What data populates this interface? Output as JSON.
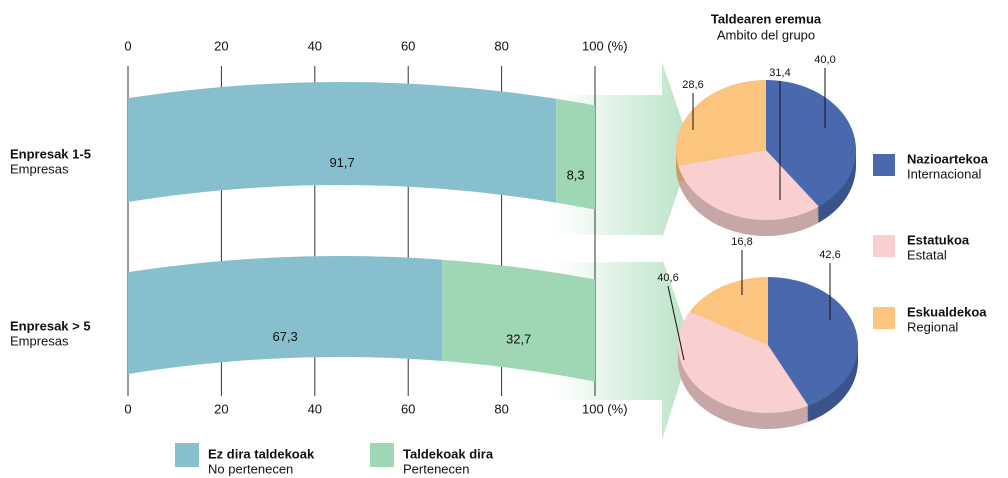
{
  "chart_data": [
    {
      "type": "bar",
      "categories": [
        "Enpresak 1-5",
        "Enpresak > 5"
      ],
      "category_subtitles": [
        "Empresas",
        "Empresas"
      ],
      "series": [
        {
          "name": "Ez dira taldekoak",
          "subtitle": "No pertenecen",
          "color": "#87bfcf",
          "values": [
            91.7,
            67.3
          ],
          "value_labels": [
            "91,7",
            "67,3"
          ]
        },
        {
          "name": "Taldekoak dira",
          "subtitle": "Pertenecen",
          "color": "#9fd6b3",
          "values": [
            8.3,
            32.7
          ],
          "value_labels": [
            "8,3",
            "32,7"
          ]
        }
      ],
      "xlim": [
        0,
        100
      ],
      "xticks": [
        0,
        20,
        40,
        60,
        80,
        {
          "value": 100,
          "label": "100 (%)"
        }
      ]
    },
    {
      "type": "pie",
      "title": "Taldearen eremua",
      "subtitle": "Ambito del grupo",
      "categories": [
        "Nazioartekoa",
        "Estatukoa",
        "Eskualdekoa"
      ],
      "category_subtitles": [
        "Internacional",
        "Estatal",
        "Regional"
      ],
      "colors": [
        "#4a68ae",
        "#f9cfd0",
        "#fbc57f"
      ],
      "values": [
        40.0,
        31.4,
        28.6
      ],
      "value_labels": [
        "40,0",
        "31,4",
        "28,6"
      ]
    },
    {
      "type": "pie",
      "colors": [
        "#4a68ae",
        "#f9cfd0",
        "#fbc57f"
      ],
      "values": [
        42.6,
        40.6,
        16.8
      ],
      "value_labels": [
        "42,6",
        "40,6",
        "16,8"
      ]
    }
  ]
}
